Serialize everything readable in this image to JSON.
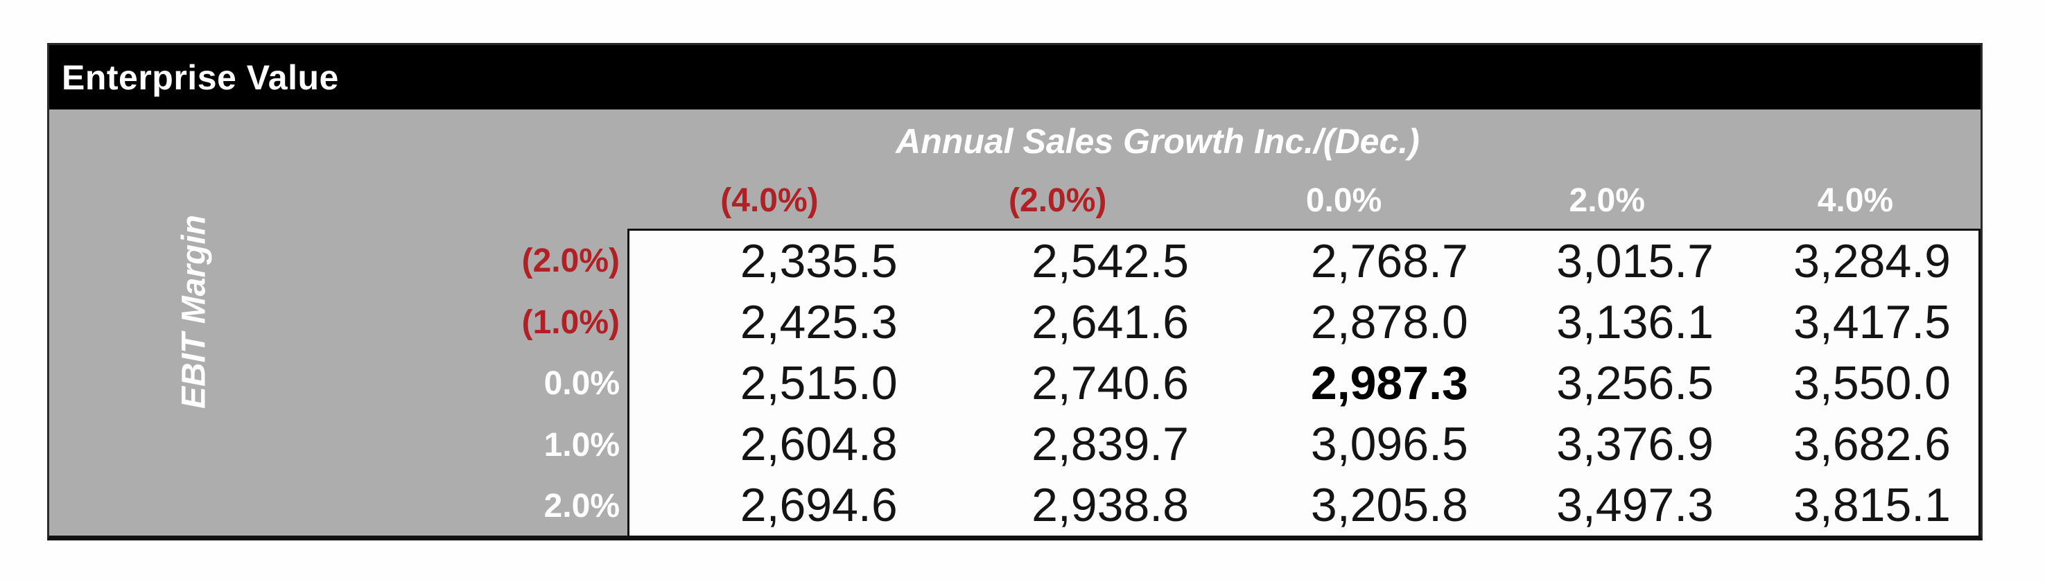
{
  "title": "Enterprise Value",
  "table": {
    "column_axis_label": "Annual Sales Growth Inc./(Dec.)",
    "row_axis_label": "EBIT Margin",
    "column_headers": [
      "(4.0%)",
      "(2.0%)",
      "0.0%",
      "2.0%",
      "4.0%"
    ],
    "row_headers": [
      "(2.0%)",
      "(1.0%)",
      "0.0%",
      "1.0%",
      "2.0%"
    ],
    "rows": [
      [
        "2,335.5",
        "2,542.5",
        "2,768.7",
        "3,015.7",
        "3,284.9"
      ],
      [
        "2,425.3",
        "2,641.6",
        "2,878.0",
        "3,136.1",
        "3,417.5"
      ],
      [
        "2,515.0",
        "2,740.6",
        "2,987.3",
        "3,256.5",
        "3,550.0"
      ],
      [
        "2,604.8",
        "2,839.7",
        "3,096.5",
        "3,376.9",
        "3,682.6"
      ],
      [
        "2,694.6",
        "2,938.8",
        "3,205.8",
        "3,497.3",
        "3,815.1"
      ]
    ],
    "base_case_value": "2,987.3"
  },
  "colors": {
    "negative_red": "#B02025",
    "panel_gray": "#ADADAD",
    "titlebar_black": "#000000",
    "data_background": "#FDFDFD"
  }
}
